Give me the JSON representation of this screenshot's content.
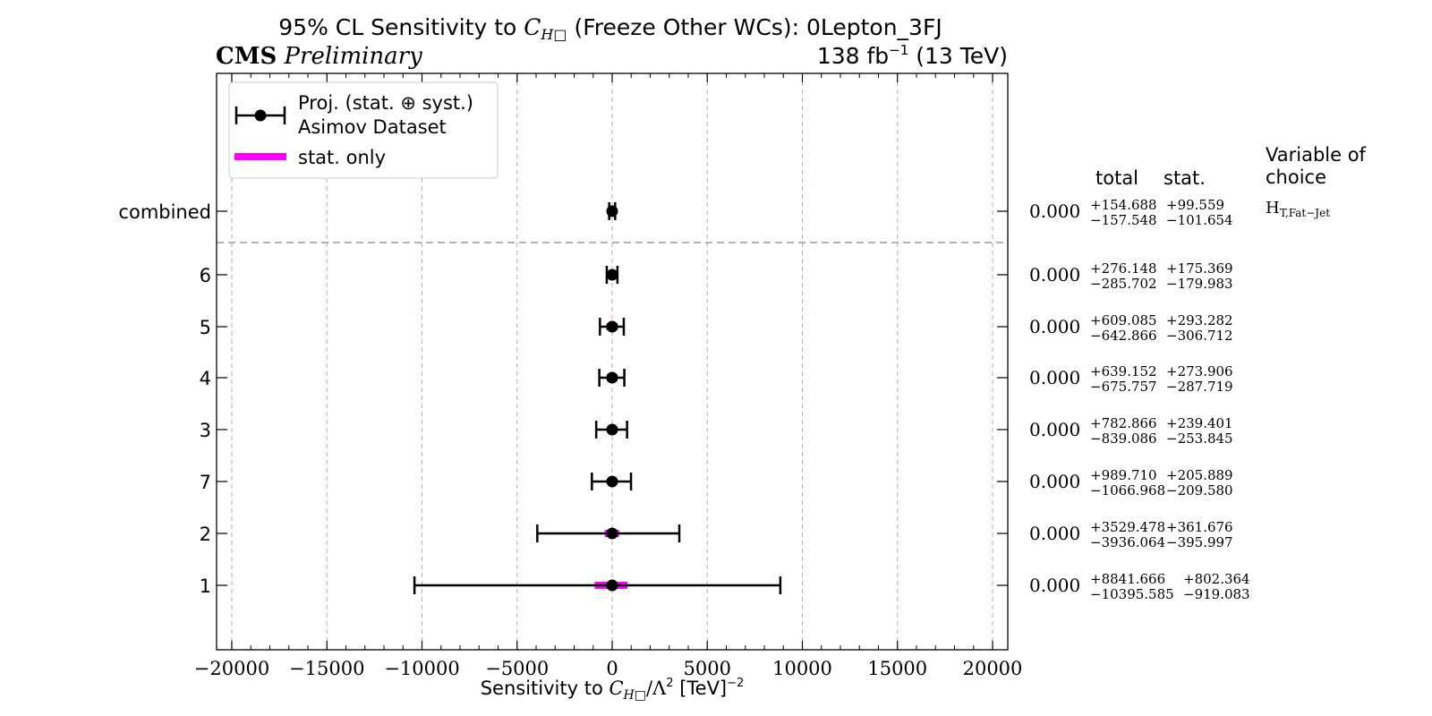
{
  "chart_data": {
    "type": "scatter",
    "title_prefix": "95% CL Sensitivity to ",
    "title_symbol": "C",
    "title_symbol_sub": "H□",
    "title_suffix": " (Freeze Other WCs): 0Lepton_3FJ",
    "experiment": "CMS",
    "experiment_status": "Preliminary",
    "lumi_label": "138 fb",
    "lumi_exp": "−1",
    "energy_label": " (13 TeV)",
    "xlabel_prefix": "Sensitivity to ",
    "xlabel_symbol": "C",
    "xlabel_symbol_sub": "H□",
    "xlabel_suffix": "/Λ",
    "xlabel_sq": "2",
    "xlabel_units": " [TeV]",
    "xlabel_units_exp": "−2",
    "xlim": [
      -20800,
      20800
    ],
    "x_ticks": [
      -20000,
      -15000,
      -10000,
      -5000,
      0,
      5000,
      10000,
      15000,
      20000
    ],
    "x_tick_labels": [
      "−20000",
      "−15000",
      "−10000",
      "−5000",
      "0",
      "5000",
      "10000",
      "15000",
      "20000"
    ],
    "grid": "vertical dashed",
    "legend_position": "top-left",
    "legend": {
      "total_label_line1": "Proj. (stat. ⊕ syst.)",
      "total_label_line2": "Asimov Dataset",
      "stat_label": "stat. only"
    },
    "column_headers": {
      "total": "total",
      "stat": "stat.",
      "variable_line1": "Variable of",
      "variable_line2": "choice"
    },
    "variable_of_choice": "H",
    "variable_of_choice_sub": "T,Fat−Jet",
    "separator_after_row": 0,
    "colors": {
      "total": "#000000",
      "stat": "#ff00ff",
      "grid": "#b0b0b0",
      "separator": "#999999"
    },
    "rows": [
      {
        "label": "combined",
        "central": 0,
        "central_text": "0.000",
        "total_up": 154.688,
        "total_down": 157.548,
        "stat_up": 99.559,
        "stat_down": 101.654,
        "total_up_text": "+154.688",
        "total_down_text": "−157.548",
        "stat_up_text": "+99.559",
        "stat_down_text": "−101.654"
      },
      {
        "label": "6",
        "central": 0,
        "central_text": "0.000",
        "total_up": 276.148,
        "total_down": 285.702,
        "stat_up": 175.369,
        "stat_down": 179.983,
        "total_up_text": "+276.148",
        "total_down_text": "−285.702",
        "stat_up_text": "+175.369",
        "stat_down_text": "−179.983"
      },
      {
        "label": "5",
        "central": 0,
        "central_text": "0.000",
        "total_up": 609.085,
        "total_down": 642.866,
        "stat_up": 293.282,
        "stat_down": 306.712,
        "total_up_text": "+609.085",
        "total_down_text": "−642.866",
        "stat_up_text": "+293.282",
        "stat_down_text": "−306.712"
      },
      {
        "label": "4",
        "central": 0,
        "central_text": "0.000",
        "total_up": 639.152,
        "total_down": 675.757,
        "stat_up": 273.906,
        "stat_down": 287.719,
        "total_up_text": "+639.152",
        "total_down_text": "−675.757",
        "stat_up_text": "+273.906",
        "stat_down_text": "−287.719"
      },
      {
        "label": "3",
        "central": 0,
        "central_text": "0.000",
        "total_up": 782.866,
        "total_down": 839.086,
        "stat_up": 239.401,
        "stat_down": 253.845,
        "total_up_text": "+782.866",
        "total_down_text": "−839.086",
        "stat_up_text": "+239.401",
        "stat_down_text": "−253.845"
      },
      {
        "label": "7",
        "central": 0,
        "central_text": "0.000",
        "total_up": 989.71,
        "total_down": 1066.968,
        "stat_up": 205.889,
        "stat_down": 209.58,
        "total_up_text": "+989.710",
        "total_down_text": "−1066.968",
        "stat_up_text": "+205.889",
        "stat_down_text": "−209.580"
      },
      {
        "label": "2",
        "central": 0,
        "central_text": "0.000",
        "total_up": 3529.478,
        "total_down": 3936.064,
        "stat_up": 361.676,
        "stat_down": 395.997,
        "total_up_text": "+3529.478",
        "total_down_text": "−3936.064",
        "stat_up_text": "+361.676",
        "stat_down_text": "−395.997"
      },
      {
        "label": "1",
        "central": 0,
        "central_text": "0.000",
        "total_up": 8841.666,
        "total_down": 10395.585,
        "stat_up": 802.364,
        "stat_down": 919.083,
        "total_up_text": "+8841.666",
        "total_down_text": "−10395.585",
        "stat_up_text": "+802.364",
        "stat_down_text": "−919.083"
      }
    ]
  }
}
